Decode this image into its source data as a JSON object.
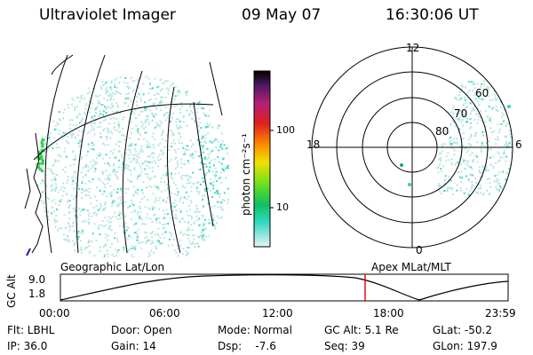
{
  "header": {
    "instrument": "Ultraviolet Imager",
    "date": "09 May 07",
    "time": "16:30:06 UT"
  },
  "colorbar": {
    "label": "photon cm⁻²s⁻¹",
    "ticks": [
      "100",
      "10"
    ]
  },
  "polar_plot": {
    "mlt_labels": [
      "12",
      "18",
      "6",
      "0"
    ],
    "mlat_labels": [
      "60",
      "70",
      "80"
    ]
  },
  "timeline": {
    "left_label": "Geographic Lat/Lon",
    "right_label": "Apex MLat/MLT",
    "y_axis_title": "GC Alt",
    "y_ticks": [
      "9.0",
      "1.8"
    ],
    "x_ticks": [
      "00:00",
      "06:00",
      "12:00",
      "18:00",
      "23:59"
    ],
    "current_time_marker": "16:30"
  },
  "info": {
    "flt": "Flt: LBHL",
    "ip": "IP: 36.0",
    "door": "Door: Open",
    "gain": "Gain: 14",
    "mode": "Mode: Normal",
    "dsp": "Dsp:    -7.6",
    "gc_alt": "GC Alt: 5.1 Re",
    "seq": "Seq: 39",
    "glat": "GLat: -50.2",
    "glon": "GLon: 197.9"
  },
  "colors": {
    "emission_low": "#b8e6e0",
    "emission_mid": "#40d8c8",
    "emission_high": "#30d050",
    "time_marker": "#e00000"
  }
}
